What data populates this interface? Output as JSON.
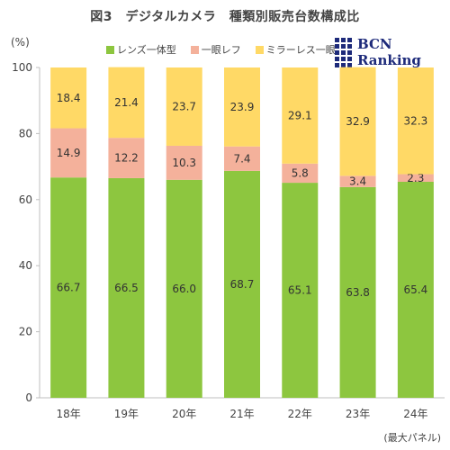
{
  "title": "図3　デジタルカメラ　種類別販売台数構成比",
  "unit_label": "(%)",
  "note": "(最大パネル)",
  "logo": {
    "text": "BCN Ranking"
  },
  "chart_data": {
    "type": "bar",
    "stacked": true,
    "categories": [
      "18年",
      "19年",
      "20年",
      "21年",
      "22年",
      "23年",
      "24年"
    ],
    "series": [
      {
        "name": "レンズ一体型",
        "color": "#8dc63f",
        "values": [
          66.7,
          66.5,
          66.0,
          68.7,
          65.1,
          63.8,
          65.4
        ]
      },
      {
        "name": "一眼レフ",
        "color": "#f4b19b",
        "values": [
          14.9,
          12.2,
          10.3,
          7.4,
          5.8,
          3.4,
          2.3
        ]
      },
      {
        "name": "ミラーレス一眼",
        "color": "#ffd966",
        "values": [
          18.4,
          21.4,
          23.7,
          23.9,
          29.1,
          32.9,
          32.3
        ]
      }
    ],
    "ylim": [
      0,
      100
    ],
    "yticks": [
      0,
      20,
      40,
      60,
      80,
      100
    ],
    "grid": false,
    "legend_position": "top"
  }
}
